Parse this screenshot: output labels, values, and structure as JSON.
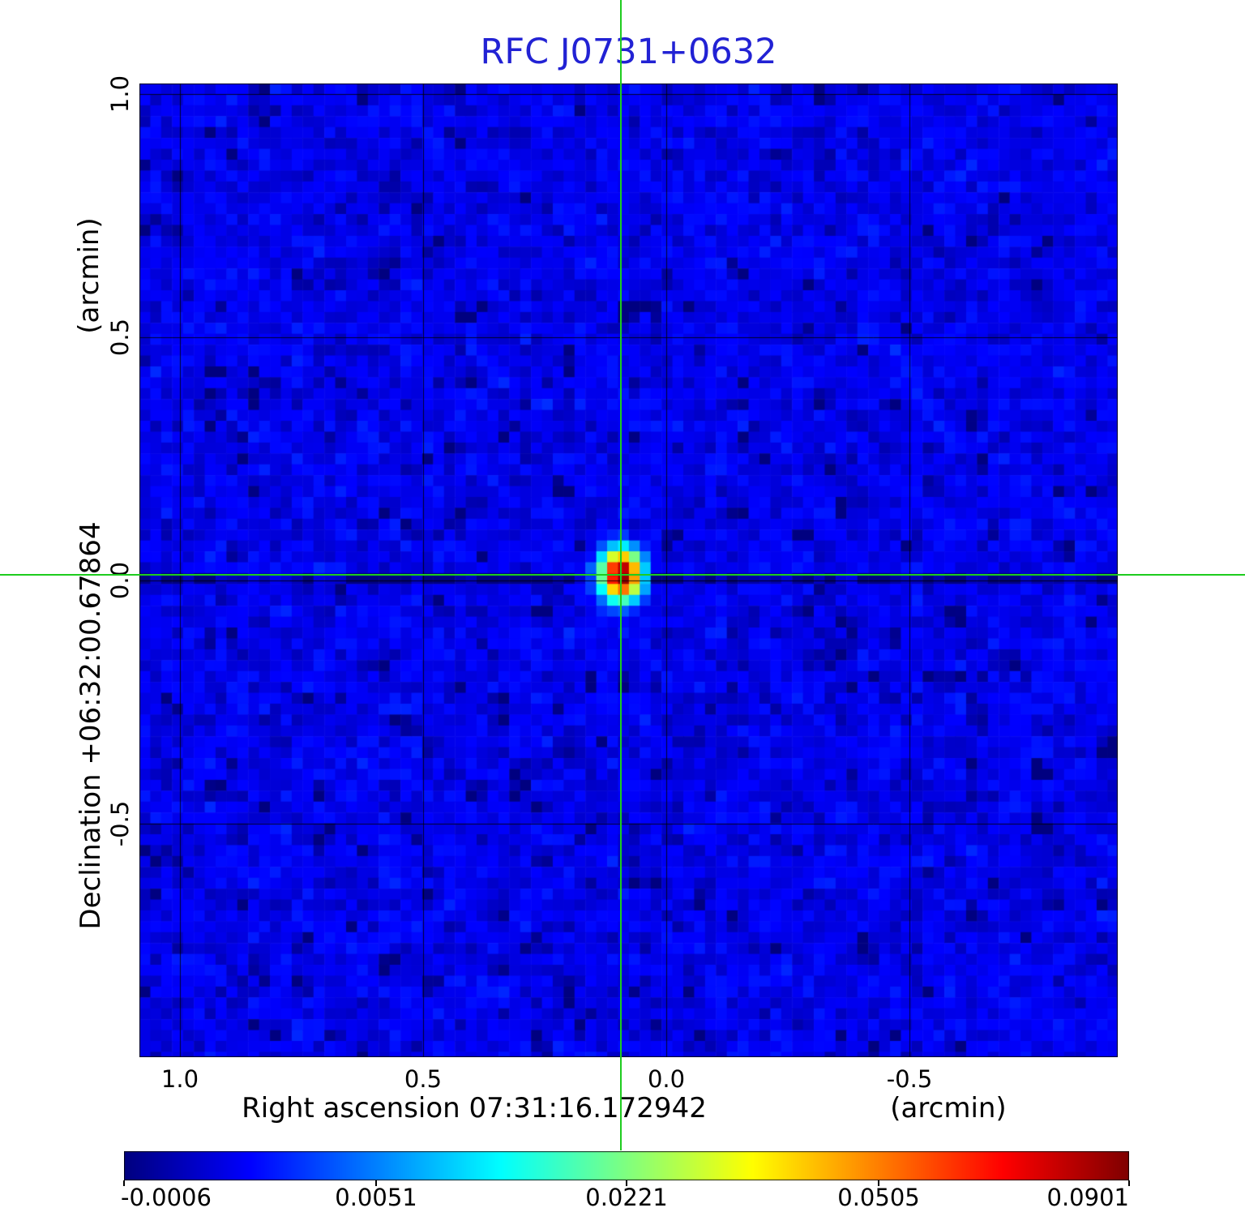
{
  "chart_data": {
    "type": "heatmap",
    "title": "RFC J0731+0632",
    "title_color": "#2222d4",
    "x_axis": {
      "label": "Right ascension  07:31:16.172942",
      "unit": "(arcmin)",
      "ticks": [
        1.0,
        0.5,
        0.0,
        -0.5
      ],
      "tick_labels": [
        "1.0",
        "0.5",
        "0.0",
        "-0.5"
      ],
      "range": [
        1.0833,
        -0.9283
      ]
    },
    "y_axis": {
      "label": "Declination  +06:32:00.67864",
      "unit": "(arcmin)",
      "ticks": [
        1.0,
        0.5,
        0.0,
        -0.5
      ],
      "tick_labels": [
        "1.0",
        "0.5",
        "0.0",
        "-0.5"
      ],
      "range": [
        1.021,
        -0.98
      ]
    },
    "colorbar": {
      "colormap": "jet",
      "scale": "sqrt",
      "min": -0.0006,
      "max": 0.0901,
      "tick_values": [
        -0.0006,
        0.0051,
        0.0221,
        0.0505,
        0.0901
      ],
      "tick_labels": [
        "-0.0006",
        "0.0051",
        "0.0221",
        "0.0505",
        "0.0901"
      ]
    },
    "crosshair": {
      "x_arcmin": 0.0925,
      "y_arcmin": 0.0117,
      "color": "#1ecc1e"
    },
    "source": {
      "peak_value": 0.0901,
      "x_arcmin": 0.0925,
      "y_arcmin": 0.0117,
      "sigma_x_arcmin": 0.0235,
      "sigma_y_arcmin": 0.029
    },
    "noise": {
      "mean": 0.0004,
      "sigma": 0.0004,
      "stripe_row_delta": -0.0008
    },
    "grid": true
  }
}
